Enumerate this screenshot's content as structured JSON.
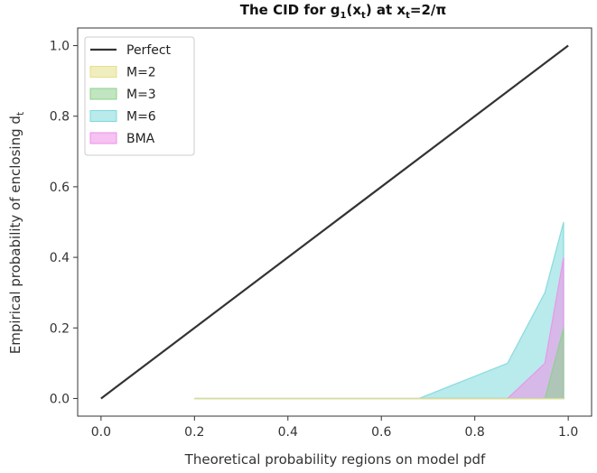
{
  "chart_data": {
    "type": "area",
    "title": {
      "prefix": "The CID for g",
      "sub1": "1",
      "mid1": "(x",
      "sub2": "t",
      "mid2": ") at x",
      "sub3": "t",
      "suffix": "=2/π"
    },
    "xlabel": "Theoretical probability regions on model pdf",
    "ylabel": {
      "text": "Empirical probability of enclosing d",
      "sub": "t"
    },
    "xlim": [
      -0.05,
      1.05
    ],
    "ylim": [
      -0.05,
      1.05
    ],
    "xticks": [
      0.0,
      0.2,
      0.4,
      0.6,
      0.8,
      1.0
    ],
    "xtick_labels": [
      "0.0",
      "0.2",
      "0.4",
      "0.6",
      "0.8",
      "1.0"
    ],
    "yticks": [
      0.0,
      0.2,
      0.4,
      0.6,
      0.8,
      1.0
    ],
    "ytick_labels": [
      "0.0",
      "0.2",
      "0.4",
      "0.6",
      "0.8",
      "1.0"
    ],
    "legend_position": "upper-left",
    "perfect": {
      "name": "Perfect",
      "color": "#333333",
      "x": [
        0.0,
        1.0
      ],
      "y": [
        0.0,
        1.0
      ]
    },
    "series": [
      {
        "name": "M=6",
        "color": "#7fd8dc",
        "x": [
          0.2,
          0.68,
          0.87,
          0.95,
          0.99
        ],
        "y": [
          0.0,
          0.0,
          0.1,
          0.3,
          0.5
        ]
      },
      {
        "name": "BMA",
        "color": "#ee90e8",
        "x": [
          0.2,
          0.87,
          0.95,
          0.99
        ],
        "y": [
          0.0,
          0.0,
          0.1,
          0.4
        ]
      },
      {
        "name": "M=3",
        "color": "#8ed08e",
        "x": [
          0.2,
          0.95,
          0.99
        ],
        "y": [
          0.0,
          0.0,
          0.2
        ]
      },
      {
        "name": "M=2",
        "color": "#e3e08a",
        "x": [
          0.2,
          0.99
        ],
        "y": [
          0.0,
          0.0
        ]
      }
    ],
    "legend_order": [
      "Perfect",
      "M=2",
      "M=3",
      "M=6",
      "BMA"
    ]
  }
}
